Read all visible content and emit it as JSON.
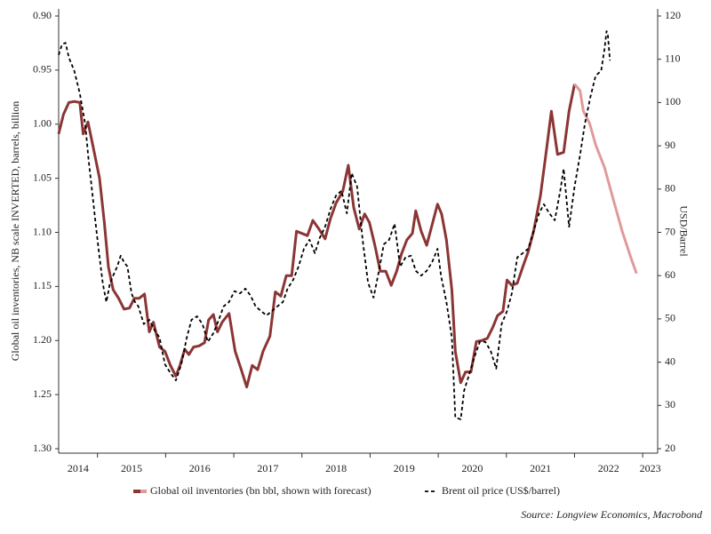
{
  "chart_data": {
    "type": "line",
    "y_label": "Global oil inventories, NB scale INVERTED, barrels, billion",
    "y2_label": "USD/Barrel",
    "source": "Source: Longview Economics, Macrobond",
    "y_inverted": true,
    "xlim": [
      2014.43,
      2023.22
    ],
    "xticks": [
      2014,
      2015,
      2016,
      2017,
      2018,
      2019,
      2020,
      2021,
      2022,
      2023
    ],
    "ylim": [
      0.9,
      1.3
    ],
    "yticks": [
      {
        "value": 0.9,
        "label": "0.90"
      },
      0.95,
      {
        "value": 1.0,
        "label": "1.00"
      },
      1.05,
      {
        "value": 1.1,
        "label": "1.10"
      },
      1.15,
      {
        "value": 1.2,
        "label": "1.20"
      },
      1.25,
      {
        "value": 1.3,
        "label": "1.30"
      }
    ],
    "y2lim": [
      20,
      120
    ],
    "y2ticks": [
      20,
      30,
      40,
      50,
      60,
      70,
      80,
      90,
      100,
      110,
      120
    ],
    "series": [
      {
        "name": "Global oil inventories (bn bbl, shown with forecast)",
        "color": "#8b3535",
        "x": [
          2014.43,
          2014.5,
          2014.58,
          2014.66,
          2014.74,
          2014.79,
          2014.86,
          2014.93,
          2015.03,
          2015.1,
          2015.16,
          2015.23,
          2015.31,
          2015.39,
          2015.47,
          2015.54,
          2015.61,
          2015.69,
          2015.76,
          2015.82,
          2015.91,
          2015.99,
          2016.07,
          2016.15,
          2016.21,
          2016.28,
          2016.34,
          2016.41,
          2016.49,
          2016.57,
          2016.63,
          2016.7,
          2016.76,
          2016.83,
          2016.93,
          2017.02,
          2017.11,
          2017.19,
          2017.27,
          2017.35,
          2017.43,
          2017.53,
          2017.61,
          2017.69,
          2017.77,
          2017.85,
          2017.92,
          2018.0,
          2018.08,
          2018.16,
          2018.24,
          2018.34,
          2018.42,
          2018.5,
          2018.6,
          2018.68,
          2018.76,
          2018.84,
          2018.92,
          2018.99,
          2019.07,
          2019.15,
          2019.23,
          2019.31,
          2019.39,
          2019.46,
          2019.54,
          2019.62,
          2019.67,
          2019.75,
          2019.83,
          2019.91,
          2019.99,
          2020.05,
          2020.12,
          2020.2,
          2020.25,
          2020.33,
          2020.4,
          2020.48,
          2020.56,
          2020.64,
          2020.72,
          2020.8,
          2020.87,
          2020.95,
          2021.01,
          2021.08,
          2021.16,
          2021.24,
          2021.32,
          2021.4,
          2021.5,
          2021.58,
          2021.66,
          2021.75,
          2021.84,
          2021.92,
          2022.0
        ],
        "values": [
          1.009,
          0.991,
          0.98,
          0.979,
          0.98,
          1.009,
          0.998,
          1.019,
          1.05,
          1.091,
          1.132,
          1.153,
          1.161,
          1.171,
          1.17,
          1.161,
          1.161,
          1.157,
          1.192,
          1.183,
          1.206,
          1.21,
          1.223,
          1.233,
          1.223,
          1.208,
          1.213,
          1.206,
          1.205,
          1.202,
          1.181,
          1.176,
          1.192,
          1.183,
          1.175,
          1.21,
          1.227,
          1.243,
          1.223,
          1.227,
          1.21,
          1.196,
          1.155,
          1.159,
          1.14,
          1.14,
          1.099,
          1.101,
          1.103,
          1.089,
          1.096,
          1.106,
          1.087,
          1.073,
          1.062,
          1.038,
          1.077,
          1.097,
          1.083,
          1.091,
          1.112,
          1.136,
          1.136,
          1.149,
          1.136,
          1.12,
          1.107,
          1.101,
          1.08,
          1.099,
          1.112,
          1.093,
          1.074,
          1.083,
          1.107,
          1.153,
          1.21,
          1.239,
          1.229,
          1.229,
          1.201,
          1.2,
          1.198,
          1.188,
          1.177,
          1.173,
          1.144,
          1.149,
          1.147,
          1.132,
          1.118,
          1.099,
          1.066,
          1.028,
          0.988,
          1.028,
          1.026,
          0.988,
          0.963
        ]
      },
      {
        "color": "#e09a9a",
        "x": [
          2022.0,
          2022.08,
          2022.13,
          2022.22,
          2022.31,
          2022.44,
          2022.57,
          2022.7,
          2022.83,
          2022.91
        ],
        "values": [
          0.963,
          0.969,
          0.988,
          0.999,
          1.019,
          1.04,
          1.07,
          1.099,
          1.124,
          1.138
        ]
      },
      {
        "name": "Brent oil price (US$/barrel)",
        "color": "#000000",
        "dashed": true,
        "axis": "y2",
        "x": [
          2014.43,
          2014.48,
          2014.53,
          2014.58,
          2014.66,
          2014.74,
          2014.82,
          2014.87,
          2014.92,
          2014.97,
          2015.03,
          2015.08,
          2015.13,
          2015.18,
          2015.23,
          2015.29,
          2015.34,
          2015.39,
          2015.44,
          2015.5,
          2015.55,
          2015.6,
          2015.68,
          2015.76,
          2015.84,
          2015.91,
          2015.99,
          2016.07,
          2016.15,
          2016.23,
          2016.31,
          2016.38,
          2016.46,
          2016.54,
          2016.62,
          2016.7,
          2016.78,
          2016.85,
          2016.93,
          2017.01,
          2017.09,
          2017.17,
          2017.25,
          2017.32,
          2017.4,
          2017.48,
          2017.56,
          2017.64,
          2017.72,
          2017.79,
          2017.87,
          2017.95,
          2018.03,
          2018.11,
          2018.19,
          2018.26,
          2018.34,
          2018.42,
          2018.5,
          2018.58,
          2018.66,
          2018.73,
          2018.81,
          2018.89,
          2018.97,
          2019.05,
          2019.13,
          2019.2,
          2019.28,
          2019.36,
          2019.44,
          2019.52,
          2019.6,
          2019.67,
          2019.75,
          2019.83,
          2019.91,
          2019.99,
          2020.04,
          2020.12,
          2020.2,
          2020.25,
          2020.33,
          2020.38,
          2020.46,
          2020.54,
          2020.61,
          2020.69,
          2020.77,
          2020.85,
          2020.93,
          2021.01,
          2021.08,
          2021.16,
          2021.24,
          2021.32,
          2021.4,
          2021.48,
          2021.55,
          2021.63,
          2021.71,
          2021.79,
          2021.84,
          2021.92,
          2022.0,
          2022.08,
          2022.15,
          2022.23,
          2022.31,
          2022.39,
          2022.44,
          2022.47,
          2022.49,
          2022.52
        ],
        "values": [
          111.0,
          113.4,
          113.8,
          110.4,
          107.3,
          102.1,
          95.0,
          86.7,
          79.6,
          72.4,
          64.2,
          58.0,
          53.9,
          58.0,
          60.0,
          62.1,
          64.6,
          63.1,
          62.1,
          55.9,
          53.9,
          52.9,
          48.8,
          49.8,
          47.3,
          45.7,
          39.5,
          37.5,
          35.8,
          39.5,
          45.7,
          49.8,
          50.6,
          48.8,
          44.7,
          46.7,
          49.8,
          52.9,
          53.9,
          56.4,
          55.9,
          57.0,
          55.3,
          52.9,
          51.8,
          50.8,
          51.8,
          52.9,
          53.9,
          57.0,
          59.0,
          62.1,
          66.2,
          68.3,
          65.2,
          68.7,
          71.3,
          75.4,
          78.5,
          79.6,
          74.4,
          83.7,
          80.6,
          68.3,
          58.4,
          54.9,
          61.1,
          67.2,
          68.3,
          72.0,
          62.1,
          64.2,
          64.6,
          61.1,
          60.0,
          61.1,
          63.1,
          66.2,
          60.0,
          53.9,
          45.7,
          27.2,
          26.8,
          33.4,
          37.5,
          41.6,
          44.7,
          44.7,
          42.6,
          38.5,
          48.8,
          51.8,
          55.9,
          64.2,
          65.2,
          66.2,
          70.3,
          74.4,
          76.5,
          74.4,
          72.8,
          79.6,
          84.7,
          71.3,
          80.6,
          87.8,
          95.0,
          101.1,
          106.2,
          107.3,
          112.4,
          116.5,
          115.5,
          109.7
        ]
      }
    ]
  }
}
